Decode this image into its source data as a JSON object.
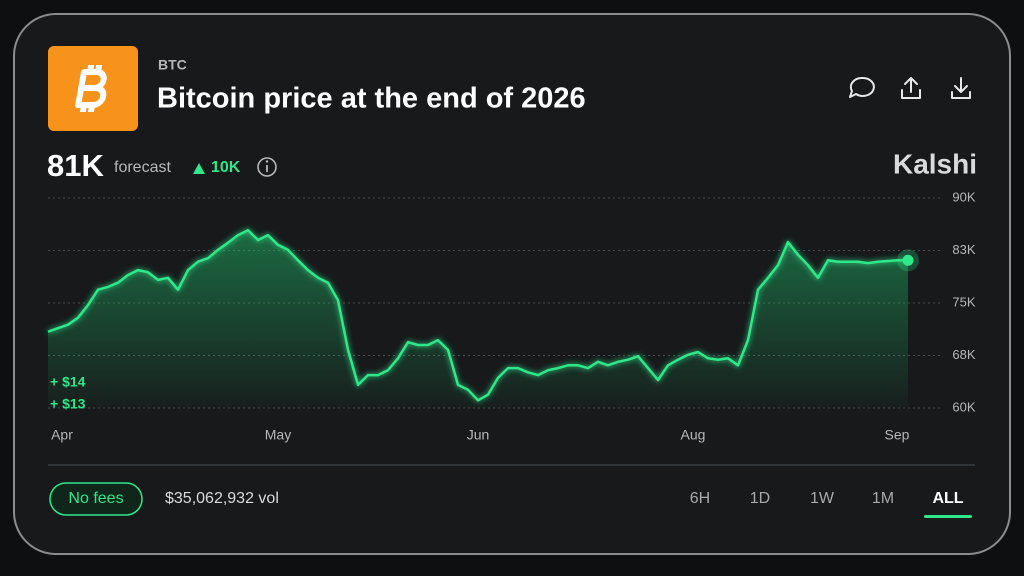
{
  "header": {
    "ticker": "BTC",
    "title": "Bitcoin price at the end of 2026"
  },
  "forecast": {
    "value": "81K",
    "label": "forecast",
    "change": "10K"
  },
  "brand": "Kalshi",
  "chart_data": {
    "type": "line",
    "x": [
      0,
      1,
      2,
      3,
      4,
      5,
      6,
      7,
      8,
      9,
      10,
      11,
      12,
      13,
      14,
      15,
      16,
      17,
      18,
      19,
      20,
      21,
      22,
      23,
      24,
      25,
      26,
      27,
      28,
      29,
      30,
      31,
      32,
      33,
      34,
      35,
      36,
      37,
      38,
      39,
      40,
      41,
      42,
      43,
      44,
      45,
      46,
      47,
      48,
      49,
      50,
      51,
      52,
      53,
      54,
      55,
      56,
      57,
      58,
      59,
      60,
      61,
      62,
      63,
      64,
      65,
      66,
      67,
      68,
      69,
      70,
      71,
      72,
      73,
      74,
      75,
      76,
      77,
      78,
      79,
      80,
      81,
      82,
      83,
      84,
      85,
      86
    ],
    "values": [
      70.9,
      71.4,
      71.9,
      72.9,
      74.7,
      76.9,
      77.3,
      77.9,
      79,
      79.7,
      79.4,
      78.3,
      78.6,
      76.9,
      79.7,
      80.9,
      81.4,
      82.6,
      83.6,
      84.7,
      85.4,
      84,
      84.7,
      83.3,
      82.6,
      81.1,
      79.7,
      78.6,
      77.9,
      75.4,
      68.3,
      63.3,
      64.7,
      64.7,
      65.4,
      67.1,
      69.4,
      69,
      69,
      69.7,
      68.3,
      63.3,
      62.6,
      61.1,
      61.9,
      64.3,
      65.7,
      65.7,
      65.1,
      64.7,
      65.4,
      65.7,
      66.1,
      66.1,
      65.7,
      66.6,
      66.1,
      66.6,
      66.9,
      67.4,
      65.7,
      64,
      66.1,
      66.9,
      67.6,
      68,
      67.1,
      66.9,
      67.1,
      66.1,
      69.7,
      76.9,
      78.6,
      80.4,
      83.7,
      81.9,
      80.4,
      78.6,
      81.1,
      80.9,
      80.9,
      80.9,
      80.7,
      80.9,
      81,
      81.1,
      81.1
    ],
    "color": "#2ee88a",
    "xlim": [
      0,
      86
    ],
    "xticks": [
      {
        "value": 1.4,
        "label": "Apr"
      },
      {
        "value": 23,
        "label": "May"
      },
      {
        "value": 43,
        "label": "Jun"
      },
      {
        "value": 64.5,
        "label": "Aug"
      },
      {
        "value": 84.9,
        "label": "Sep"
      }
    ],
    "ylim": [
      60,
      90
    ],
    "yticks": [
      {
        "value": 90,
        "label": "90K"
      },
      {
        "value": 82.5,
        "label": "83K"
      },
      {
        "value": 75,
        "label": "75K"
      },
      {
        "value": 67.5,
        "label": "68K"
      },
      {
        "value": 60,
        "label": "60K"
      }
    ],
    "grid": true,
    "annotations": [
      "+ $14",
      "+ $13"
    ]
  },
  "footer": {
    "fees": "No fees",
    "volume": "$35,062,932 vol",
    "ranges": [
      "6H",
      "1D",
      "1W",
      "1M",
      "ALL"
    ],
    "selected_range_index": 4
  }
}
